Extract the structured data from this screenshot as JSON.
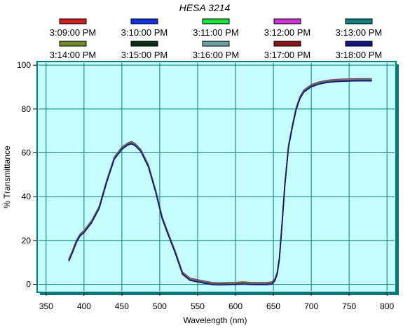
{
  "chart_data": {
    "type": "line",
    "title": "HESA 3214",
    "xlabel": "Wavelength (nm)",
    "ylabel": "% Transmittance",
    "xlim": [
      340,
      810
    ],
    "ylim": [
      -3,
      101
    ],
    "xticks": [
      350,
      400,
      450,
      500,
      550,
      600,
      650,
      700,
      750,
      800
    ],
    "yticks": [
      0,
      20,
      40,
      60,
      80,
      100
    ],
    "grid": true,
    "background_color": "#c6fefe",
    "grid_color": "#007a7a",
    "legend_position": "top",
    "x": [
      380,
      385,
      390,
      395,
      400,
      410,
      420,
      430,
      440,
      450,
      458,
      463,
      468,
      475,
      485,
      495,
      503,
      510,
      520,
      530,
      540,
      550,
      560,
      570,
      580,
      590,
      600,
      610,
      620,
      630,
      640,
      648,
      652,
      655,
      658,
      662,
      665,
      670,
      675,
      680,
      685,
      690,
      700,
      710,
      720,
      730,
      740,
      750,
      760,
      770,
      780
    ],
    "y_base": [
      11,
      15,
      19.5,
      22.5,
      24,
      28.5,
      35,
      47,
      57.5,
      62,
      64,
      64.5,
      63.5,
      61,
      54,
      42,
      30.5,
      24,
      15,
      5,
      2.2,
      1.5,
      0.8,
      0.2,
      0.1,
      0.2,
      0.3,
      0.5,
      0.3,
      0.2,
      0.2,
      0.5,
      2,
      5,
      12,
      30,
      45,
      63,
      72,
      80,
      85,
      88,
      90.5,
      91.7,
      92.4,
      92.8,
      93,
      93.1,
      93.2,
      93.2,
      93.2
    ],
    "series": [
      {
        "name": "3:09:00 PM",
        "color": "#cc1f1f",
        "dy": 0.6
      },
      {
        "name": "3:10:00 PM",
        "color": "#1030e8",
        "dy": 0.4
      },
      {
        "name": "3:11:00 PM",
        "color": "#14e43c",
        "dy": 0.3
      },
      {
        "name": "3:12:00 PM",
        "color": "#cc35d6",
        "dy": 0.2
      },
      {
        "name": "3:13:00 PM",
        "color": "#0e8080",
        "dy": 0.1
      },
      {
        "name": "3:14:00 PM",
        "color": "#6e8a2a",
        "dy": 0.0
      },
      {
        "name": "3:15:00 PM",
        "color": "#063018",
        "dy": -0.1
      },
      {
        "name": "3:16:00 PM",
        "color": "#66a0a0",
        "dy": -0.2
      },
      {
        "name": "3:17:00 PM",
        "color": "#8a1414",
        "dy": -0.3
      },
      {
        "name": "3:18:00 PM",
        "color": "#10167e",
        "dy": -0.4
      }
    ]
  }
}
